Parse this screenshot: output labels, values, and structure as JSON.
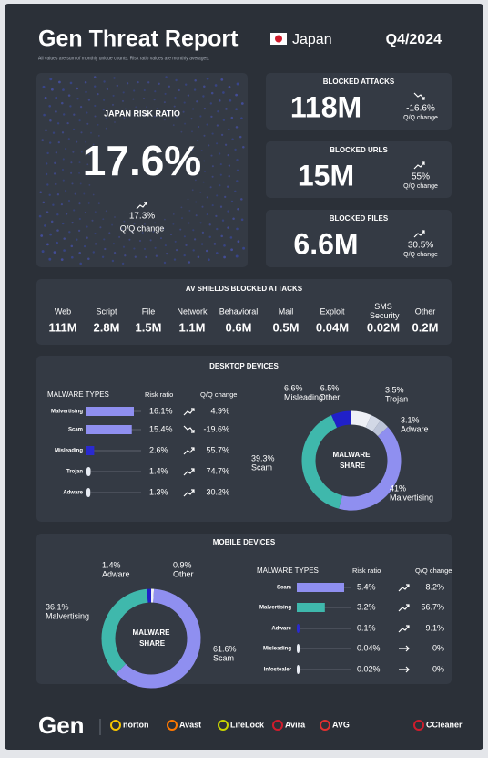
{
  "header": {
    "title": "Gen Threat Report",
    "country": "Japan",
    "period": "Q4/2024",
    "note": "All values are sum of monthly unique counts. Risk ratio values are monthly averages."
  },
  "risk": {
    "title": "JAPAN RISK RATIO",
    "value": "17.6%",
    "change": "17.3%",
    "change_label": "Q/Q change",
    "trend": "up"
  },
  "blocked": [
    {
      "title": "BLOCKED ATTACKS",
      "value": "118M",
      "change": "-16.6%",
      "change_label": "Q/Q change",
      "trend": "down"
    },
    {
      "title": "BLOCKED URLS",
      "value": "15M",
      "change": "55%",
      "change_label": "Q/Q change",
      "trend": "up"
    },
    {
      "title": "BLOCKED FILES",
      "value": "6.6M",
      "change": "30.5%",
      "change_label": "Q/Q change",
      "trend": "up"
    }
  ],
  "av_shields": {
    "title": "AV SHIELDS BLOCKED ATTACKS",
    "items": [
      {
        "name": "Web",
        "value": "111M"
      },
      {
        "name": "Script",
        "value": "2.8M"
      },
      {
        "name": "File",
        "value": "1.5M"
      },
      {
        "name": "Network",
        "value": "1.1M"
      },
      {
        "name": "Behavioral",
        "value": "0.6M"
      },
      {
        "name": "Mail",
        "value": "0.5M"
      },
      {
        "name": "Exploit",
        "value": "0.04M"
      },
      {
        "name": "SMS Security",
        "value": "0.02M"
      },
      {
        "name": "Other",
        "value": "0.2M"
      }
    ]
  },
  "desktop": {
    "title": "DESKTOP DEVICES",
    "headers": [
      "MALWARE TYPES",
      "Risk ratio",
      "Q/Q change"
    ],
    "rows": [
      {
        "name": "Malvertising",
        "risk_ratio": 16.1,
        "risk_label": "16.1%",
        "change": "4.9%",
        "trend": "up",
        "color": "#8f8ff0"
      },
      {
        "name": "Scam",
        "risk_ratio": 15.4,
        "risk_label": "15.4%",
        "change": "-19.6%",
        "trend": "down",
        "color": "#8f8ff0"
      },
      {
        "name": "Misleading",
        "risk_ratio": 2.6,
        "risk_label": "2.6%",
        "change": "55.7%",
        "trend": "up",
        "color": "#2a2ad0"
      },
      {
        "name": "Trojan",
        "risk_ratio": 1.4,
        "risk_label": "1.4%",
        "change": "74.7%",
        "trend": "up",
        "color": "#e8ecf4"
      },
      {
        "name": "Adware",
        "risk_ratio": 1.3,
        "risk_label": "1.3%",
        "change": "30.2%",
        "trend": "up",
        "color": "#e8ecf4"
      }
    ],
    "donut": {
      "center_label": "MALWARE SHARE",
      "segments": [
        {
          "name": "Other",
          "value": 6.5,
          "label": "6.5%",
          "color": "#eef0f6"
        },
        {
          "name": "Trojan",
          "value": 3.5,
          "label": "3.5%",
          "color": "#d2d8e6"
        },
        {
          "name": "Adware",
          "value": 3.1,
          "label": "3.1%",
          "color": "#bcc4d8"
        },
        {
          "name": "Malvertising",
          "value": 41,
          "label": "41%",
          "color": "#8f8ff0"
        },
        {
          "name": "Scam",
          "value": 39.3,
          "label": "39.3%",
          "color": "#3fb8ac"
        },
        {
          "name": "Misleading",
          "value": 6.6,
          "label": "6.6%",
          "color": "#2020c8"
        }
      ]
    }
  },
  "mobile": {
    "title": "MOBILE DEVICES",
    "headers": [
      "MALWARE TYPES",
      "Risk ratio",
      "Q/Q change"
    ],
    "rows": [
      {
        "name": "Scam",
        "risk_ratio": 5.4,
        "risk_label": "5.4%",
        "change": "8.2%",
        "trend": "up",
        "color": "#8f8ff0"
      },
      {
        "name": "Malvertising",
        "risk_ratio": 3.2,
        "risk_label": "3.2%",
        "change": "56.7%",
        "trend": "up",
        "color": "#3fb8ac"
      },
      {
        "name": "Adware",
        "risk_ratio": 0.1,
        "risk_label": "0.1%",
        "change": "9.1%",
        "trend": "up",
        "color": "#2a2ad0"
      },
      {
        "name": "Misleading",
        "risk_ratio": 0.04,
        "risk_label": "0.04%",
        "change": "0%",
        "trend": "flat",
        "color": "#e8ecf4"
      },
      {
        "name": "Infostealer",
        "risk_ratio": 0.02,
        "risk_label": "0.02%",
        "change": "0%",
        "trend": "flat",
        "color": "#e8ecf4"
      }
    ],
    "donut": {
      "center_label": "MALWARE SHARE",
      "segments": [
        {
          "name": "Other",
          "value": 0.9,
          "label": "0.9%",
          "color": "#eef0f6"
        },
        {
          "name": "Scam",
          "value": 61.6,
          "label": "61.6%",
          "color": "#8f8ff0"
        },
        {
          "name": "Malvertising",
          "value": 36.1,
          "label": "36.1%",
          "color": "#3fb8ac"
        },
        {
          "name": "Adware",
          "value": 1.4,
          "label": "1.4%",
          "color": "#2020c8"
        }
      ]
    }
  },
  "footer": {
    "logo": "Gen",
    "brands": [
      "norton",
      "Avast",
      "LifeLock",
      "Avira",
      "AVG",
      "CCleaner"
    ]
  }
}
